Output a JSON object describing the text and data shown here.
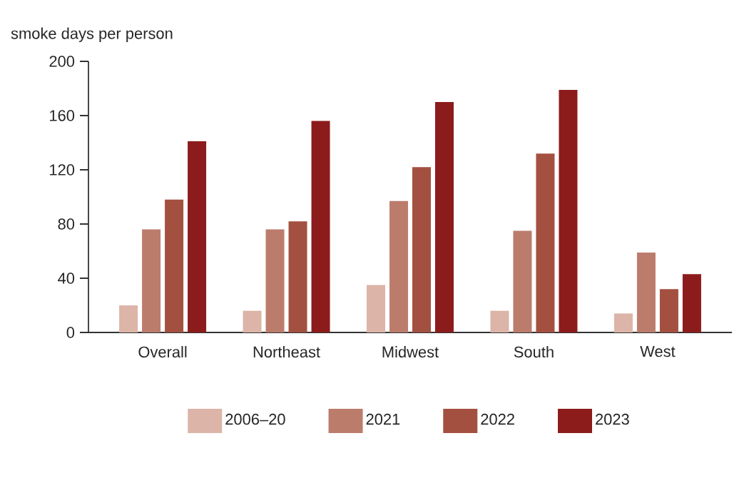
{
  "chart_data": {
    "type": "bar",
    "ylabel": "smoke days per person",
    "categories": [
      "Overall",
      "Northeast",
      "Midwest",
      "South",
      "West"
    ],
    "series": [
      {
        "name": "2006–20",
        "color": "#dcb4a8",
        "values": [
          20,
          16,
          35,
          16,
          14
        ]
      },
      {
        "name": "2021",
        "color": "#bc7c6c",
        "values": [
          76,
          76,
          97,
          75,
          59
        ]
      },
      {
        "name": "2022",
        "color": "#a45040",
        "values": [
          98,
          82,
          122,
          132,
          32
        ]
      },
      {
        "name": "2023",
        "color": "#8c1c1c",
        "values": [
          141,
          156,
          170,
          179,
          43
        ]
      }
    ],
    "ylim": [
      0,
      200
    ],
    "yticks": [
      0,
      40,
      80,
      120,
      160,
      200
    ],
    "grid": false,
    "legend": "bottom"
  }
}
